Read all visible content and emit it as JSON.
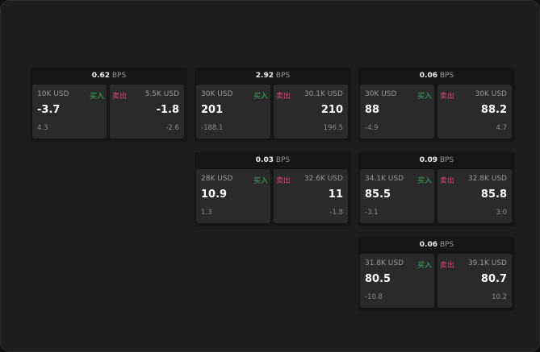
{
  "unit": "BPS",
  "buy_label": "买入",
  "sell_label": "卖出",
  "colors": {
    "buy": "#35b35c",
    "sell": "#e0457a"
  },
  "cards": [
    {
      "spread": "0.62",
      "buy": {
        "size": "10K USD",
        "price": "-3.7",
        "change": "4.3"
      },
      "sell": {
        "size": "5.5K USD",
        "price": "-1.8",
        "change": "-2.6"
      }
    },
    {
      "spread": "2.92",
      "buy": {
        "size": "30K USD",
        "price": "201",
        "change": "-188.1"
      },
      "sell": {
        "size": "30.1K USD",
        "price": "210",
        "change": "196.5"
      }
    },
    {
      "spread": "0.06",
      "buy": {
        "size": "30K USD",
        "price": "88",
        "change": "-4.9"
      },
      "sell": {
        "size": "30K USD",
        "price": "88.2",
        "change": "4.7"
      }
    },
    {
      "spread": "0.03",
      "buy": {
        "size": "28K USD",
        "price": "10.9",
        "change": "1.3"
      },
      "sell": {
        "size": "32.6K USD",
        "price": "11",
        "change": "-1.8"
      }
    },
    {
      "spread": "0.09",
      "buy": {
        "size": "34.1K USD",
        "price": "85.5",
        "change": "-3.1"
      },
      "sell": {
        "size": "32.8K USD",
        "price": "85.8",
        "change": "3.0"
      }
    },
    {
      "spread": "0.06",
      "buy": {
        "size": "31.8K USD",
        "price": "80.5",
        "change": "-10.8"
      },
      "sell": {
        "size": "39.1K USD",
        "price": "80.7",
        "change": "10.2"
      }
    }
  ]
}
